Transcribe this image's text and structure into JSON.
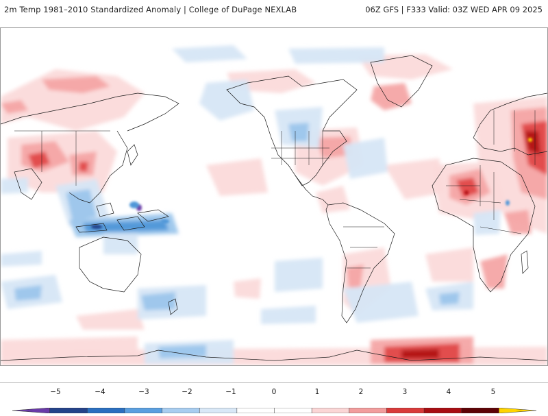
{
  "header": {
    "left_title": "2m Temp 1981–2010 Standardized Anomaly | College of DuPage NEXLAB",
    "right_title": "06Z GFS | F333 Valid: 03Z WED APR 09 2025"
  },
  "map": {
    "variable": "2m Temp Standardized Anomaly",
    "projection": "global cylindrical",
    "colors": {
      "ocean": "#ffffff",
      "coast": "#1a1a1a",
      "neg1": "#d6e6f6",
      "neg2": "#9cc6ec",
      "neg3": "#4f97d8",
      "neg4": "#24438a",
      "neg5": "#6a3aa8",
      "pos1": "#fbdada",
      "pos2": "#f4a5a5",
      "pos3": "#e04848",
      "pos4": "#b20f12",
      "pos5": "#ffd400"
    }
  },
  "colorbar": {
    "ticks": [
      "−5",
      "−4",
      "−3",
      "−2",
      "−1",
      "0",
      "1",
      "2",
      "3",
      "4",
      "5"
    ],
    "segment_colors": [
      "#6a3aa8",
      "#24438a",
      "#2b6fc0",
      "#5a9fe0",
      "#a8cdf0",
      "#d9e8f7",
      "#ffffff",
      "#ffffff",
      "#fbd6d6",
      "#f29d9d",
      "#d93a3a",
      "#a80d12",
      "#5e0306",
      "#ffd400"
    ]
  }
}
